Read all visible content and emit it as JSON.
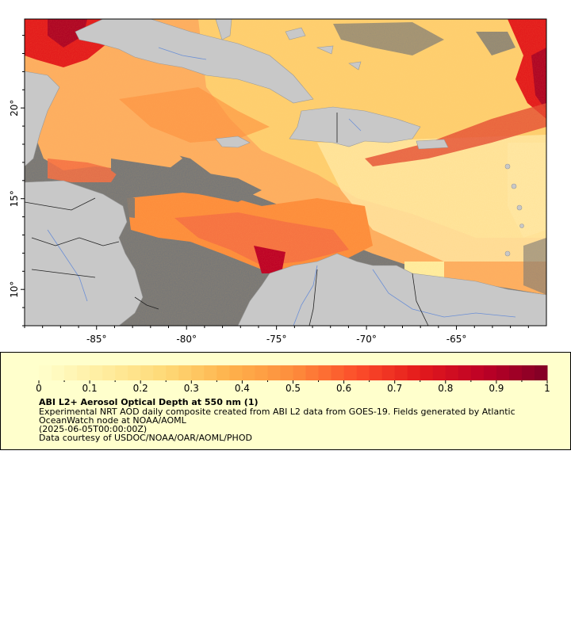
{
  "map": {
    "x_ticks": [
      {
        "value": -85,
        "label": "-85°"
      },
      {
        "value": -80,
        "label": "-80°"
      },
      {
        "value": -75,
        "label": "-75°"
      },
      {
        "value": -70,
        "label": "-70°"
      },
      {
        "value": -65,
        "label": "-65°"
      }
    ],
    "y_ticks": [
      {
        "value": 20,
        "label": "20°"
      },
      {
        "value": 15,
        "label": "15°"
      },
      {
        "value": 10,
        "label": "10°"
      }
    ],
    "lon_range": [
      -89,
      -60
    ],
    "lat_range": [
      8,
      24.9
    ],
    "colors": {
      "land": "#c8c8c8",
      "nodata": "#777777",
      "borders": "#222222",
      "rivers": "#6b8fd6"
    }
  },
  "legend": {
    "title": "ABI L2+ Aerosol Optical Depth at 550 nm (1)",
    "description": "Experimental NRT AOD daily composite created from ABI L2 data from GOES-19. Fields generated by Atlantic OceanWatch node at NOAA/AOML",
    "date": "(2025-06-05T00:00:00Z)",
    "credit": "Data courtesy of USDOC/NOAA/OAR/AOML/PHOD",
    "colorbar": {
      "min": 0,
      "max": 1,
      "tick_labels": [
        "0",
        "0.1",
        "0.2",
        "0.3",
        "0.4",
        "0.5",
        "0.6",
        "0.7",
        "0.8",
        "0.9",
        "1"
      ],
      "colors": [
        "#ffffcc",
        "#ffeda0",
        "#fed976",
        "#feb24c",
        "#fd8d3c",
        "#fc4e2a",
        "#e31a1c",
        "#bd0026",
        "#800026"
      ]
    }
  }
}
